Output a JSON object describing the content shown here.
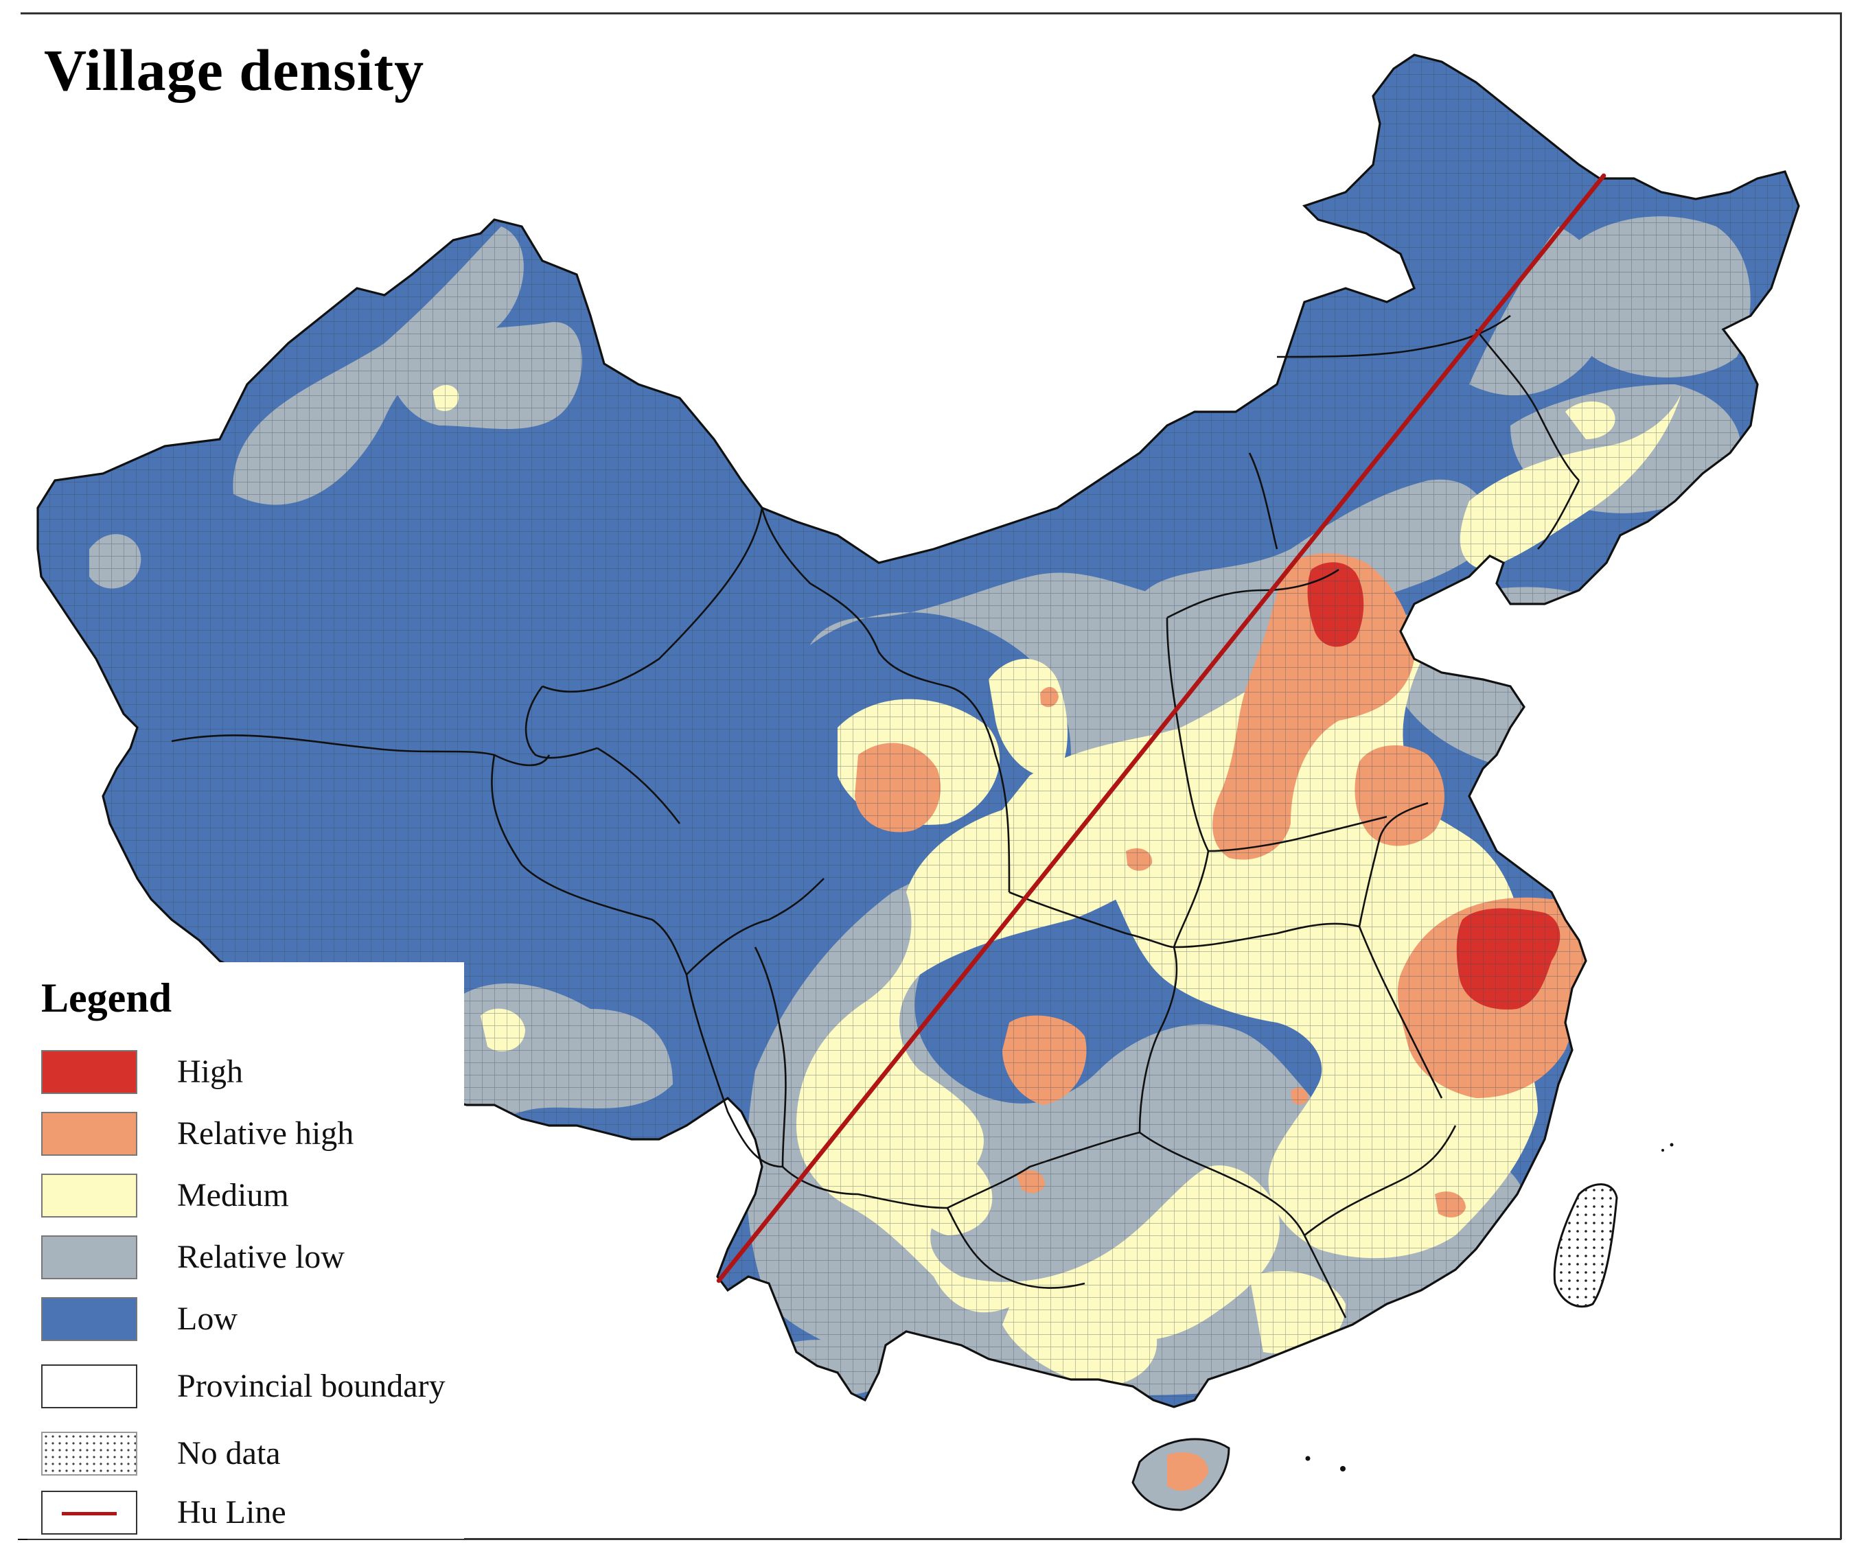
{
  "map": {
    "title": "Village density",
    "hu_line_color": "#b01515",
    "boundary_color": "#111111",
    "colors": {
      "high": "#d7312b",
      "relative_high": "#f19b70",
      "medium": "#fdfbc1",
      "relative_low": "#a7b3bd",
      "low": "#4a74b3"
    }
  },
  "legend": {
    "title": "Legend",
    "items": [
      {
        "key": "high",
        "label": "High",
        "swatch": "#d7312b"
      },
      {
        "key": "relative_high",
        "label": "Relative high",
        "swatch": "#f19b70"
      },
      {
        "key": "medium",
        "label": "Medium",
        "swatch": "#fdfbc1"
      },
      {
        "key": "relative_low",
        "label": "Relative low",
        "swatch": "#a7b3bd"
      },
      {
        "key": "low",
        "label": "Low",
        "swatch": "#4a74b3"
      },
      {
        "key": "provincial_boundary",
        "label": "Provincial boundary",
        "swatch": "#ffffff"
      },
      {
        "key": "no_data",
        "label": "No data",
        "swatch": "dotted"
      },
      {
        "key": "hu_line",
        "label": "Hu Line",
        "swatch": "line"
      }
    ]
  }
}
